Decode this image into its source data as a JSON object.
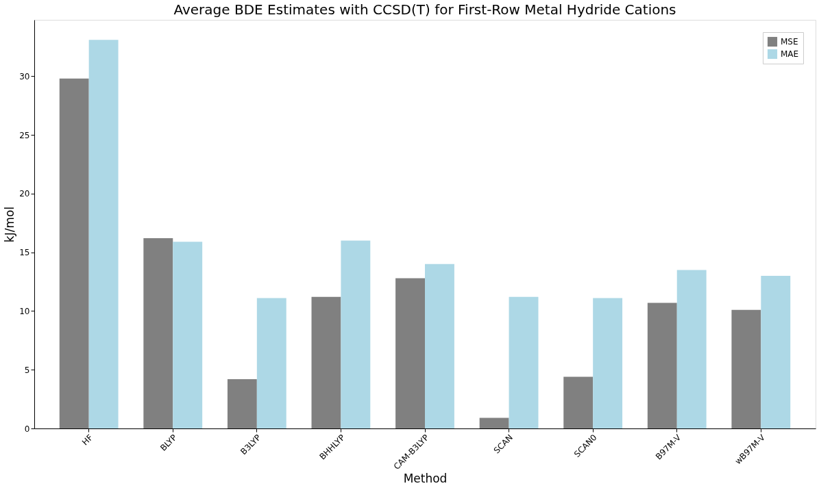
{
  "chart_data": {
    "type": "bar",
    "title": "Average BDE Estimates with CCSD(T) for First-Row Metal Hydride Cations",
    "xlabel": "Method",
    "ylabel": "kJ/mol",
    "categories": [
      "HF",
      "BLYP",
      "B3LYP",
      "BHHLYP",
      "CAM-B3LYP",
      "SCAN",
      "SCAN0",
      "B97M-V",
      "wB97M-V"
    ],
    "series": [
      {
        "name": "MSE",
        "color": "#808080",
        "values": [
          29.8,
          16.2,
          4.2,
          11.2,
          12.8,
          0.9,
          4.4,
          10.7,
          10.1
        ]
      },
      {
        "name": "MAE",
        "color": "#add8e6",
        "values": [
          33.1,
          15.9,
          11.1,
          16.0,
          14.0,
          11.2,
          11.1,
          13.5,
          13.0
        ]
      }
    ],
    "ylim": [
      0,
      34.8
    ],
    "yticks": [
      0,
      5,
      10,
      15,
      20,
      25,
      30
    ],
    "grid": false,
    "legend": "top right"
  }
}
